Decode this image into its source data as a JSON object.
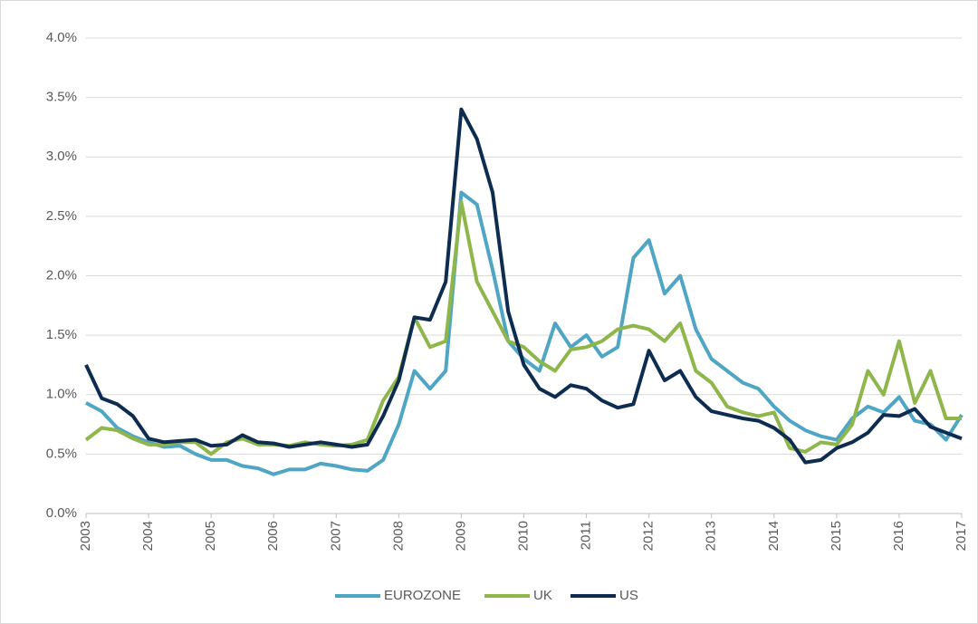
{
  "chart_data": {
    "type": "line",
    "x": [
      2003,
      2003.25,
      2003.5,
      2003.75,
      2004,
      2004.25,
      2004.5,
      2004.75,
      2005,
      2005.25,
      2005.5,
      2005.75,
      2006,
      2006.25,
      2006.5,
      2006.75,
      2007,
      2007.25,
      2007.5,
      2007.75,
      2008,
      2008.25,
      2008.5,
      2008.75,
      2009,
      2009.25,
      2009.5,
      2009.75,
      2010,
      2010.25,
      2010.5,
      2010.75,
      2011,
      2011.25,
      2011.5,
      2011.75,
      2012,
      2012.25,
      2012.5,
      2012.75,
      2013,
      2013.25,
      2013.5,
      2013.75,
      2014,
      2014.25,
      2014.5,
      2014.75,
      2015,
      2015.25,
      2015.5,
      2015.75,
      2016,
      2016.25,
      2016.5,
      2016.75,
      2017
    ],
    "series": [
      {
        "name": "EUROZONE",
        "color": "#4fa6c4",
        "values": [
          0.93,
          0.86,
          0.72,
          0.65,
          0.6,
          0.56,
          0.57,
          0.5,
          0.45,
          0.45,
          0.4,
          0.38,
          0.33,
          0.37,
          0.37,
          0.42,
          0.4,
          0.37,
          0.36,
          0.45,
          0.75,
          1.2,
          1.05,
          1.2,
          2.7,
          2.6,
          2.05,
          1.45,
          1.3,
          1.2,
          1.6,
          1.4,
          1.5,
          1.32,
          1.4,
          2.15,
          2.3,
          1.85,
          2.0,
          1.55,
          1.3,
          1.2,
          1.1,
          1.05,
          0.9,
          0.78,
          0.7,
          0.65,
          0.62,
          0.8,
          0.9,
          0.85,
          0.98,
          0.78,
          0.75,
          0.62,
          0.83
        ]
      },
      {
        "name": "UK",
        "color": "#8fb64b",
        "values": [
          0.62,
          0.72,
          0.7,
          0.63,
          0.58,
          0.58,
          0.6,
          0.6,
          0.5,
          0.6,
          0.63,
          0.58,
          0.58,
          0.57,
          0.6,
          0.58,
          0.57,
          0.58,
          0.62,
          0.95,
          1.15,
          1.65,
          1.4,
          1.45,
          2.62,
          1.95,
          1.7,
          1.45,
          1.4,
          1.28,
          1.2,
          1.38,
          1.4,
          1.45,
          1.55,
          1.58,
          1.55,
          1.45,
          1.6,
          1.2,
          1.1,
          0.9,
          0.85,
          0.82,
          0.85,
          0.55,
          0.52,
          0.6,
          0.58,
          0.75,
          1.2,
          1.0,
          1.45,
          0.93,
          1.2,
          0.8,
          0.8
        ]
      },
      {
        "name": "US",
        "color": "#0d2c50",
        "values": [
          1.25,
          0.97,
          0.92,
          0.82,
          0.63,
          0.6,
          0.61,
          0.62,
          0.57,
          0.58,
          0.66,
          0.6,
          0.59,
          0.56,
          0.58,
          0.6,
          0.58,
          0.56,
          0.58,
          0.82,
          1.12,
          1.65,
          1.63,
          1.95,
          3.4,
          3.15,
          2.7,
          1.7,
          1.25,
          1.05,
          0.98,
          1.08,
          1.05,
          0.95,
          0.89,
          0.92,
          1.37,
          1.12,
          1.2,
          0.98,
          0.86,
          0.83,
          0.8,
          0.78,
          0.72,
          0.62,
          0.43,
          0.45,
          0.55,
          0.6,
          0.68,
          0.83,
          0.82,
          0.88,
          0.73,
          0.68,
          0.63
        ]
      }
    ],
    "xlim": [
      2003,
      2017
    ],
    "xticks": [
      2003,
      2004,
      2005,
      2006,
      2007,
      2008,
      2009,
      2010,
      2011,
      2012,
      2013,
      2014,
      2015,
      2016,
      2017
    ],
    "ylim": [
      0,
      4
    ],
    "yticks": [
      {
        "value": 0,
        "label": "0.0%"
      },
      {
        "value": 0.5,
        "label": "0.5%"
      },
      {
        "value": 1,
        "label": "1.0%"
      },
      {
        "value": 1.5,
        "label": "1.5%"
      },
      {
        "value": 2,
        "label": "2.0%"
      },
      {
        "value": 2.5,
        "label": "2.5%"
      },
      {
        "value": 3,
        "label": "3.0%"
      },
      {
        "value": 3.5,
        "label": "3.5%"
      },
      {
        "value": 4,
        "label": "4.0%"
      }
    ],
    "grid": true,
    "legend": "bottom"
  }
}
